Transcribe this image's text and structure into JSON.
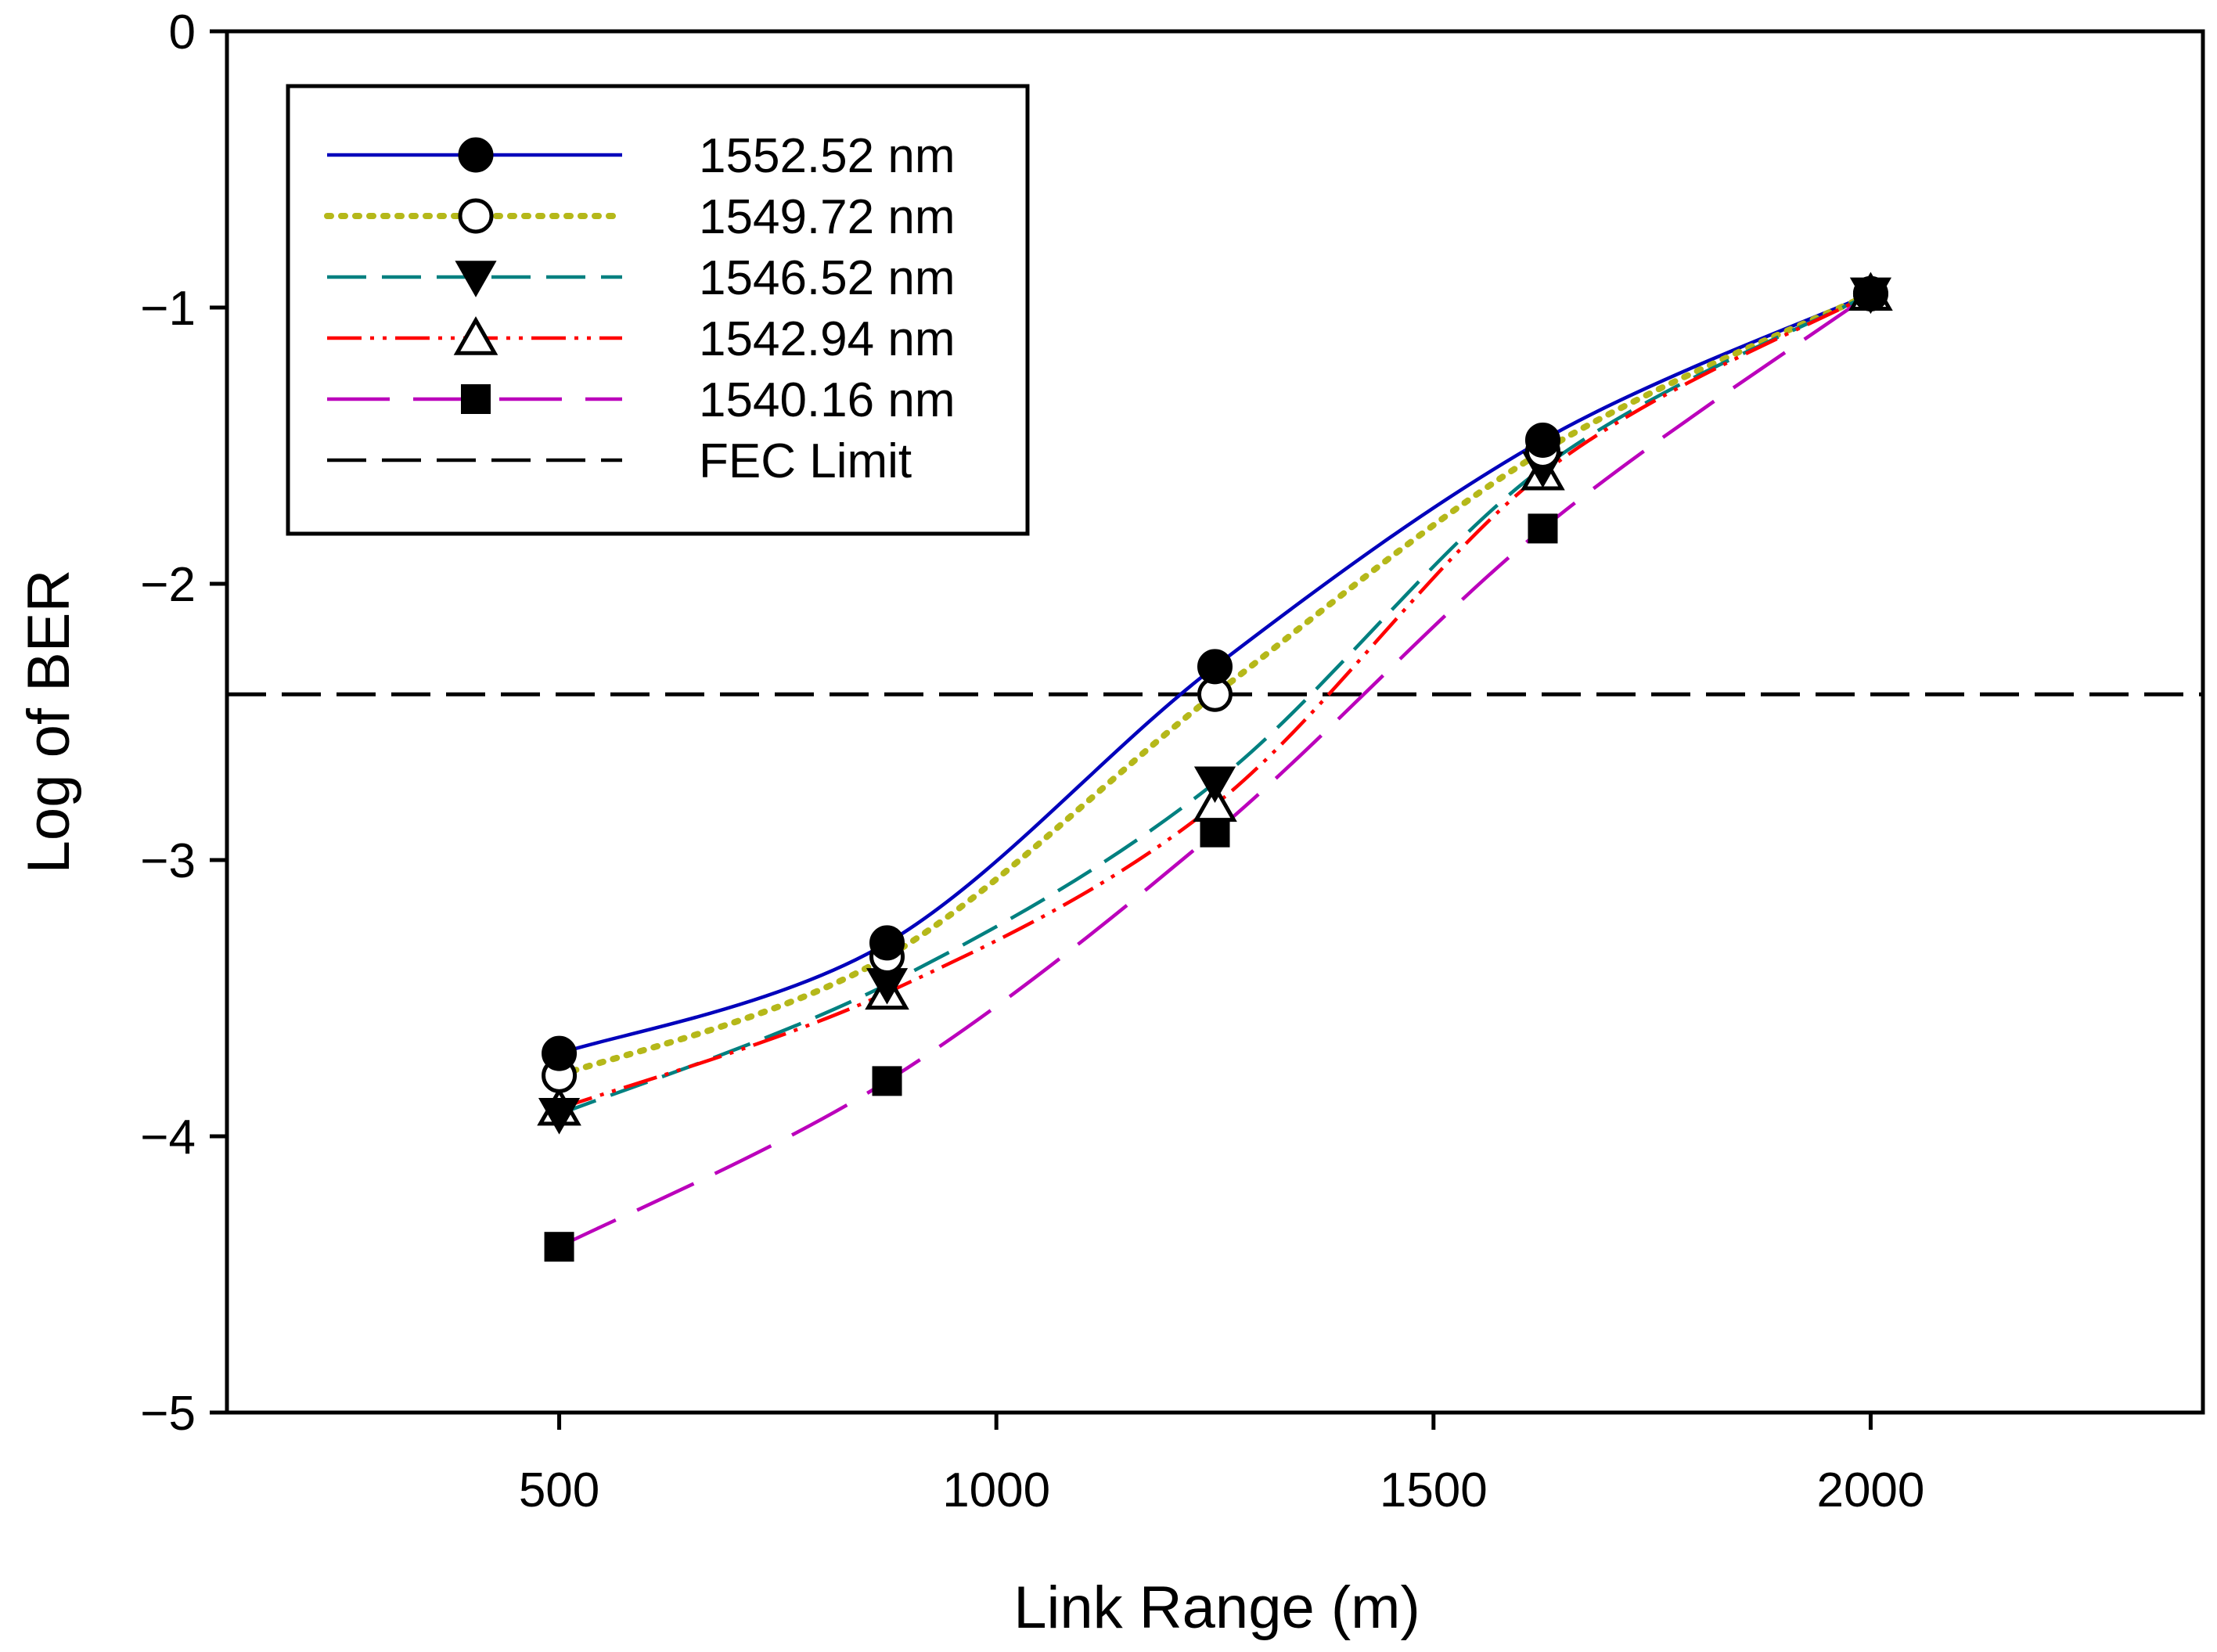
{
  "chart_data": {
    "type": "line",
    "title": "",
    "xlabel": "Link Range (m)",
    "ylabel": "Log of BER",
    "xlim": [
      120,
      2380
    ],
    "ylim": [
      -5,
      0
    ],
    "xticks": [
      500,
      1000,
      1500,
      2000
    ],
    "yticks": [
      0,
      -1,
      -2,
      -3,
      -4,
      -5
    ],
    "xtick_labels": [
      "500",
      "1000",
      "1500",
      "2000"
    ],
    "ytick_labels": [
      "0",
      "−1",
      "−2",
      "−3",
      "−4",
      "−5"
    ],
    "grid": false,
    "legend_position": "top-left",
    "series": [
      {
        "name": "1552.52 nm",
        "color": "#0000bb",
        "line_style": "solid",
        "marker": "filled-circle",
        "x": [
          500,
          875,
          1250,
          1625,
          2000
        ],
        "y": [
          -3.7,
          -3.3,
          -2.3,
          -1.48,
          -0.95
        ]
      },
      {
        "name": "1549.72 nm",
        "color": "#b5b81a",
        "line_style": "dotted",
        "marker": "open-circle",
        "x": [
          500,
          875,
          1250,
          1625,
          2000
        ],
        "y": [
          -3.78,
          -3.35,
          -2.4,
          -1.52,
          -0.95
        ]
      },
      {
        "name": "1546.52 nm",
        "color": "#008080",
        "line_style": "dashed",
        "marker": "filled-triangle-down",
        "x": [
          500,
          875,
          1250,
          1625,
          2000
        ],
        "y": [
          -3.92,
          -3.45,
          -2.72,
          -1.58,
          -0.95
        ]
      },
      {
        "name": "1542.94 nm",
        "color": "#ff0000",
        "line_style": "dash-dot-dot",
        "marker": "open-triangle-up",
        "x": [
          500,
          875,
          1250,
          1625,
          2000
        ],
        "y": [
          -3.9,
          -3.48,
          -2.8,
          -1.6,
          -0.95
        ]
      },
      {
        "name": "1540.16 nm",
        "color": "#bb00bb",
        "line_style": "long-dash",
        "marker": "filled-square",
        "x": [
          500,
          875,
          1250,
          1625,
          2000
        ],
        "y": [
          -4.4,
          -3.8,
          -2.9,
          -1.8,
          -0.95
        ]
      }
    ],
    "reference_lines": [
      {
        "name": "FEC Limit",
        "y": -2.4,
        "color": "#000000",
        "line_style": "dashed"
      }
    ]
  }
}
